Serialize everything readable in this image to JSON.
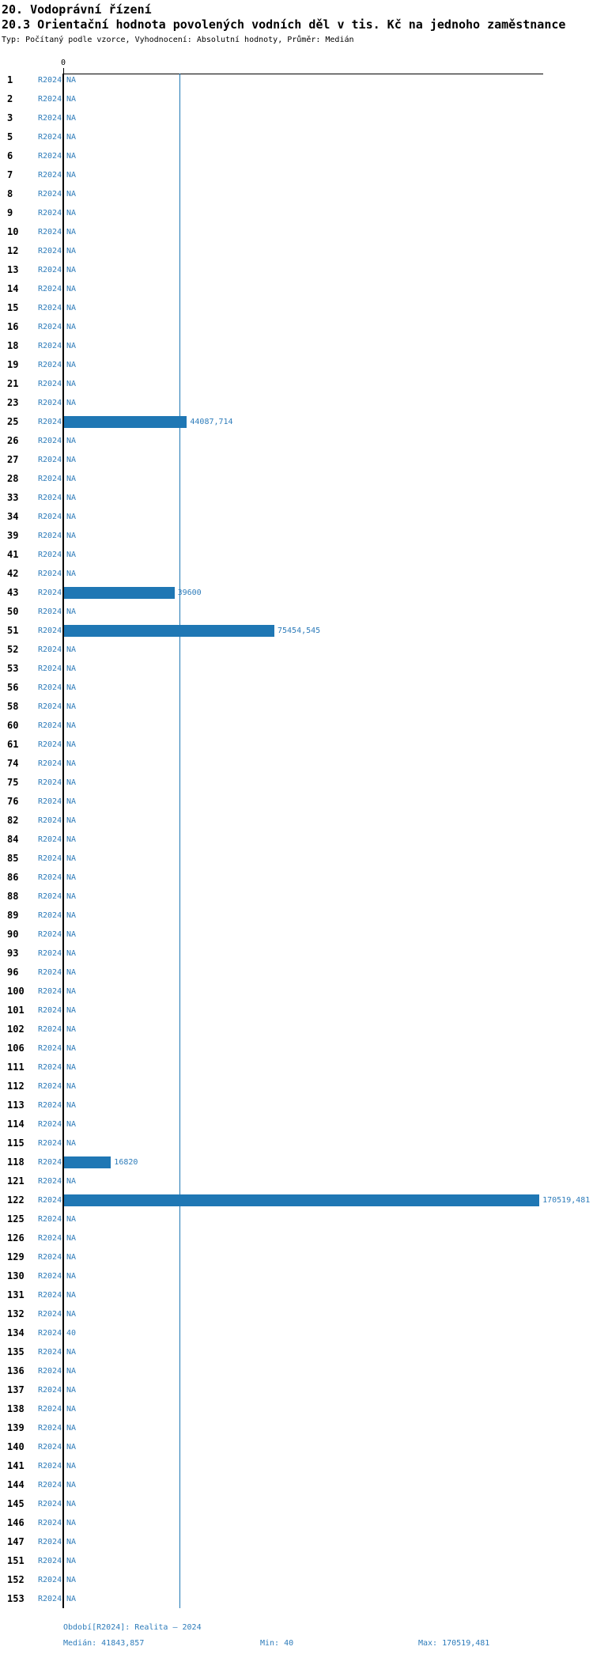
{
  "header": {
    "title": "20. Vodoprávní řízení",
    "subtitle": "20.3 Orientační hodnota povolených vodních děl v tis. Kč na jednoho zaměstnance",
    "meta": "Typ: Počítaný podle vzorce, Vyhodnocení: Absolutní hodnoty, Průměr: Medián"
  },
  "chart_data": {
    "type": "bar",
    "orientation": "horizontal",
    "title": "20.3 Orientační hodnota povolených vodních děl v tis. Kč na jednoho zaměstnance",
    "xlabel": "",
    "ylabel": "",
    "xlim": [
      0,
      172000
    ],
    "grid": false,
    "x_axis_tick_labels": [
      "0"
    ],
    "period": "R2024",
    "na_label": "NA",
    "median": 41843.857,
    "min": 40,
    "max": 170519.481,
    "categories": [
      "1",
      "2",
      "3",
      "5",
      "6",
      "7",
      "8",
      "9",
      "10",
      "12",
      "13",
      "14",
      "15",
      "16",
      "18",
      "19",
      "21",
      "23",
      "25",
      "26",
      "27",
      "28",
      "33",
      "34",
      "39",
      "41",
      "42",
      "43",
      "50",
      "51",
      "52",
      "53",
      "56",
      "58",
      "60",
      "61",
      "74",
      "75",
      "76",
      "82",
      "84",
      "85",
      "86",
      "88",
      "89",
      "90",
      "93",
      "96",
      "100",
      "101",
      "102",
      "106",
      "111",
      "112",
      "113",
      "114",
      "115",
      "118",
      "121",
      "122",
      "125",
      "126",
      "129",
      "130",
      "131",
      "132",
      "134",
      "135",
      "136",
      "137",
      "138",
      "139",
      "140",
      "141",
      "144",
      "145",
      "146",
      "147",
      "151",
      "152",
      "153"
    ],
    "values": [
      null,
      null,
      null,
      null,
      null,
      null,
      null,
      null,
      null,
      null,
      null,
      null,
      null,
      null,
      null,
      null,
      null,
      null,
      44087.714,
      null,
      null,
      null,
      null,
      null,
      null,
      null,
      null,
      39600,
      null,
      75454.545,
      null,
      null,
      null,
      null,
      null,
      null,
      null,
      null,
      null,
      null,
      null,
      null,
      null,
      null,
      null,
      null,
      null,
      null,
      null,
      null,
      null,
      null,
      null,
      null,
      null,
      null,
      null,
      16820,
      null,
      170519.481,
      null,
      null,
      null,
      null,
      null,
      null,
      40,
      null,
      null,
      null,
      null,
      null,
      null,
      null,
      null,
      null,
      null,
      null,
      null,
      null,
      null
    ],
    "bar_labels": {
      "25": "44087,714",
      "43": "39600",
      "51": "75454,545",
      "118": "16820",
      "122": "170519,481",
      "134": "40"
    },
    "colors": {
      "bar": "#1f77b4",
      "median_line": "#1f77b4",
      "blue_text": "#2e7cba",
      "axis": "#000000"
    }
  },
  "footer": {
    "period_line": "Období[R2024]: Realita – 2024",
    "median_label": "Medián: 41843,857",
    "min_label": "Min: 40",
    "max_label": "Max: 170519,481"
  }
}
